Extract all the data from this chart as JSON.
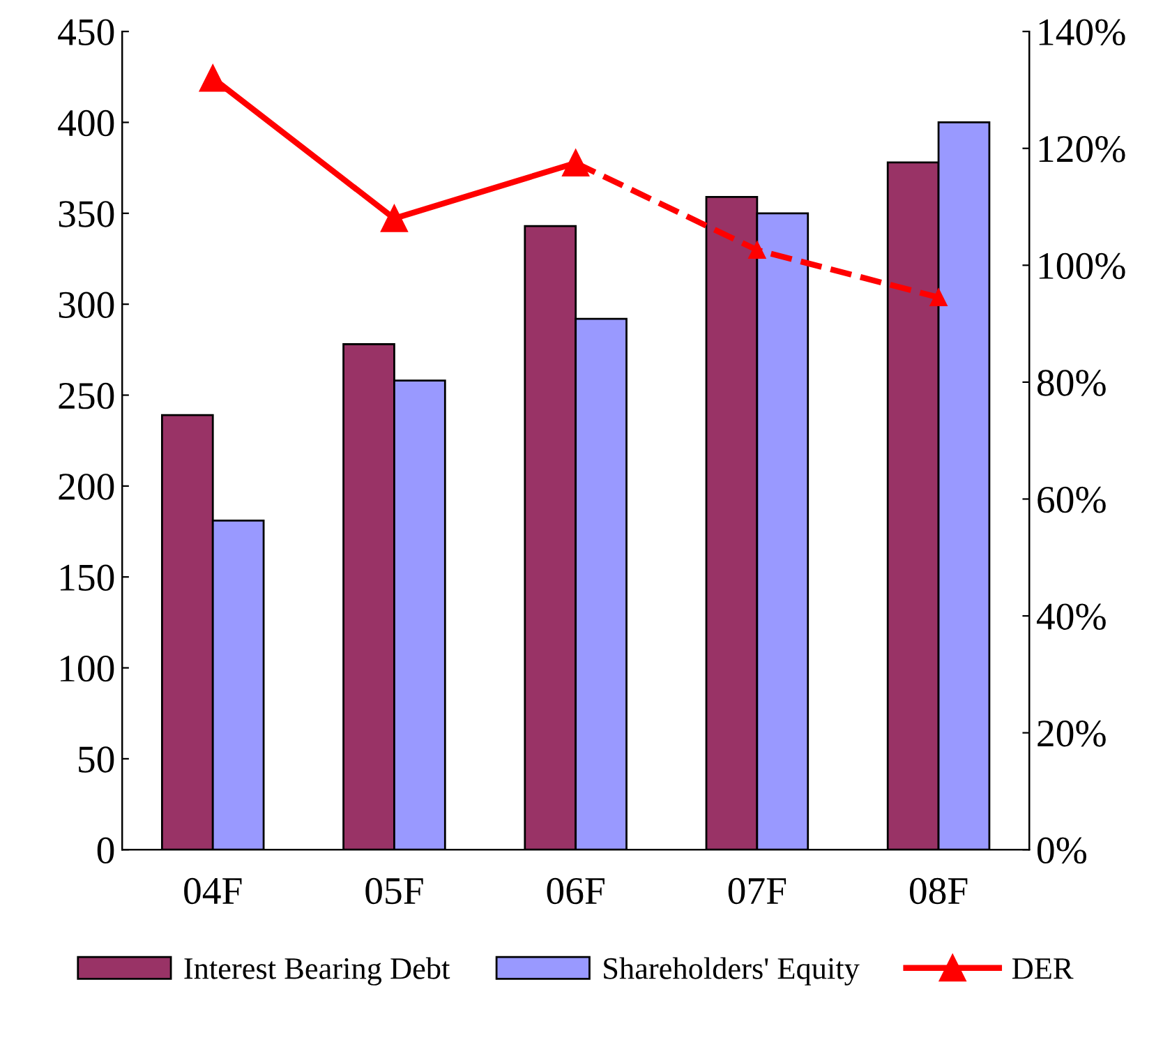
{
  "chart_data": {
    "type": "bar",
    "categories": [
      "04F",
      "05F",
      "06F",
      "07F",
      "08F"
    ],
    "series": [
      {
        "name": "Interest Bearing Debt",
        "color": "#993366",
        "values": [
          239,
          278,
          343,
          359,
          378
        ]
      },
      {
        "name": "Shareholders' Equity",
        "color": "#9999ff",
        "values": [
          181,
          258,
          292,
          350,
          400
        ]
      },
      {
        "name": "DER",
        "type": "line",
        "axis": "y2",
        "color": "#ff0000",
        "marker": "triangle",
        "line_style": "solid",
        "values": [
          132,
          108,
          117.5,
          null,
          null
        ]
      },
      {
        "type": "line",
        "axis": "y2",
        "color": "#ff0000",
        "marker": "triangle",
        "line_style": "dashed",
        "values": [
          null,
          null,
          117.5,
          102.6,
          94.5
        ]
      }
    ],
    "ylim": [
      0,
      450
    ],
    "yticks": [
      0,
      50,
      100,
      150,
      200,
      250,
      300,
      350,
      400,
      450
    ],
    "y2lim": [
      0,
      140
    ],
    "y2ticks": [
      {
        "value": 0,
        "label": "0%"
      },
      {
        "value": 20,
        "label": "20%"
      },
      {
        "value": 40,
        "label": "40%"
      },
      {
        "value": 60,
        "label": "60%"
      },
      {
        "value": 80,
        "label": "80%"
      },
      {
        "value": 100,
        "label": "100%"
      },
      {
        "value": 120,
        "label": "120%"
      },
      {
        "value": 140,
        "label": "140%"
      }
    ],
    "grid": false,
    "legend": "bottom"
  }
}
